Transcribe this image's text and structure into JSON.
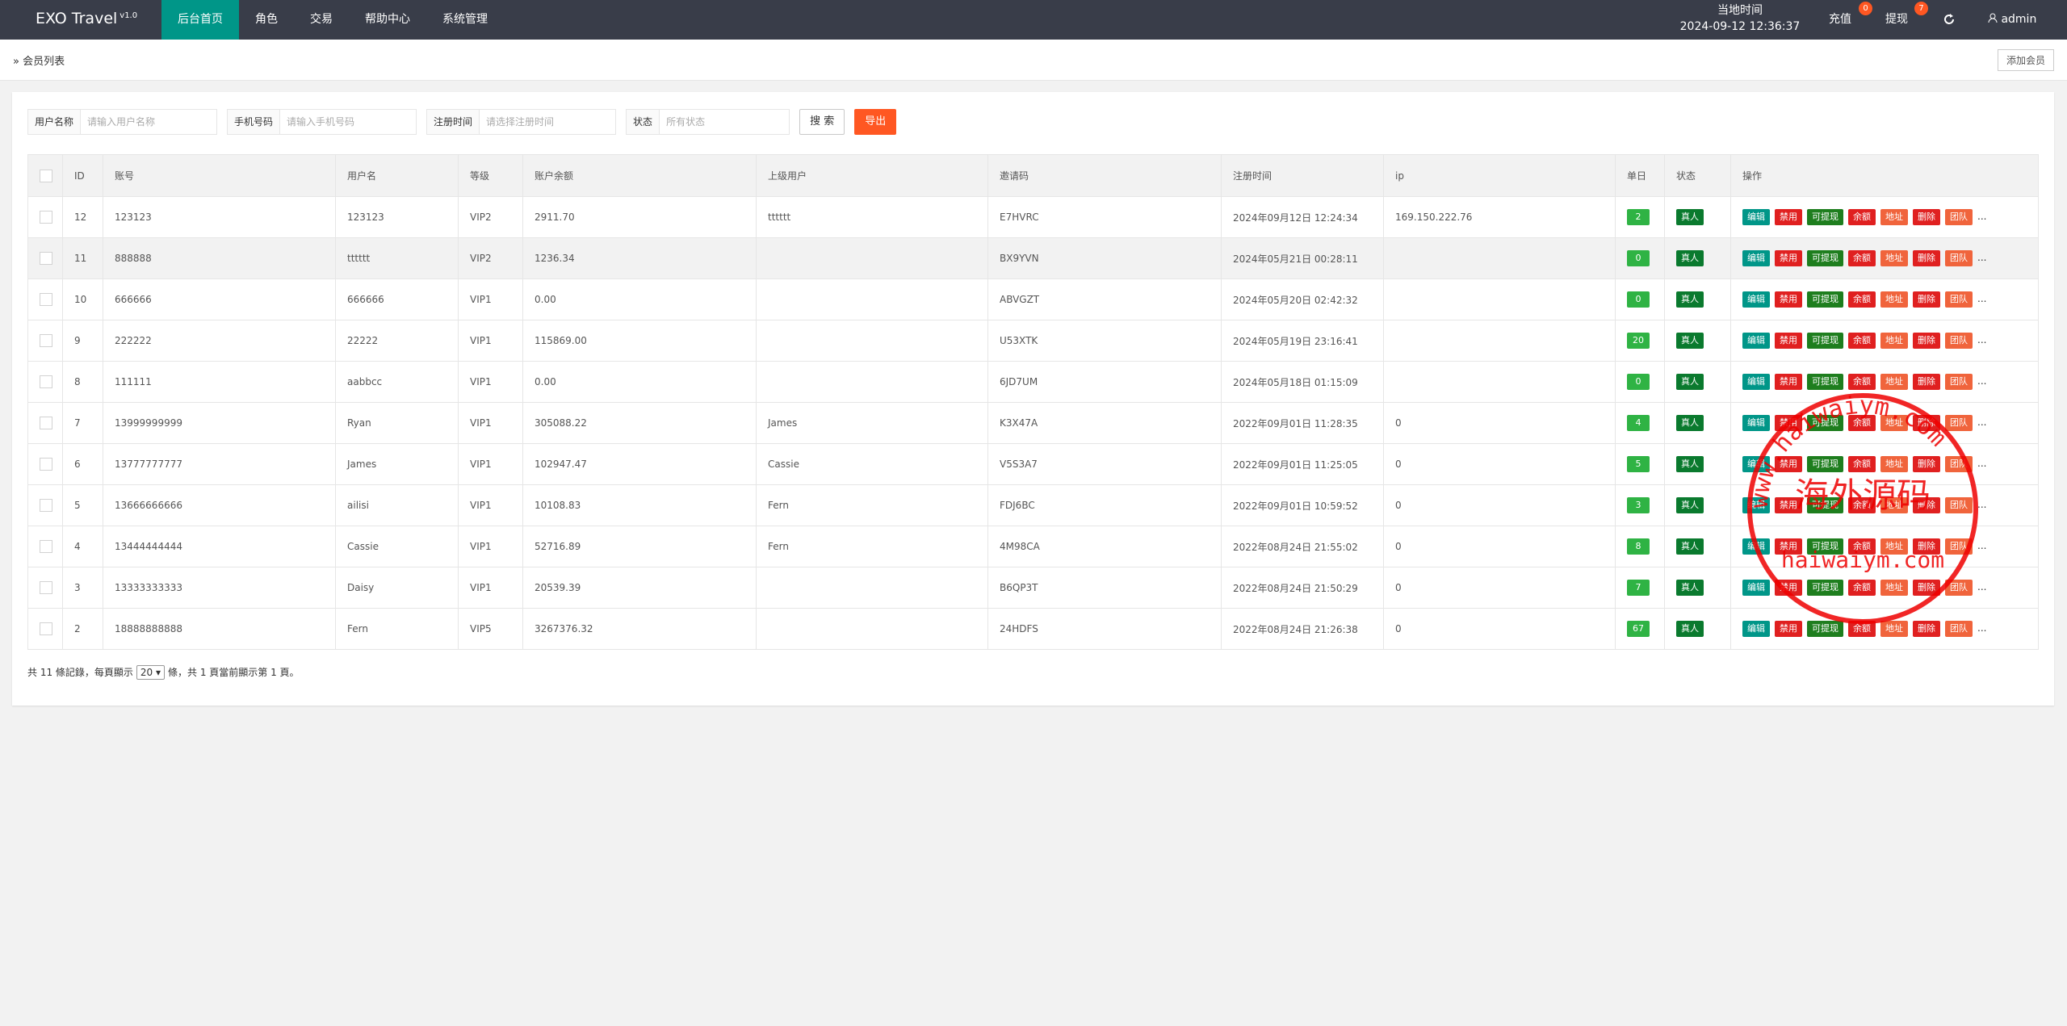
{
  "header": {
    "brand": "EXO Travel",
    "version": "v1.0",
    "nav": [
      "后台首页",
      "角色",
      "交易",
      "帮助中心",
      "系统管理"
    ],
    "time_label": "当地时间",
    "time": "2024-09-12 12:36:37",
    "recharge": "充值",
    "recharge_badge": "0",
    "withdraw": "提现",
    "withdraw_badge": "7",
    "user": "admin"
  },
  "breadcrumb": {
    "title": "会员列表",
    "add_button": "添加会员"
  },
  "filters": {
    "fields": [
      {
        "label": "用户名称",
        "placeholder": "请输入用户名称"
      },
      {
        "label": "手机号码",
        "placeholder": "请输入手机号码"
      },
      {
        "label": "注册时间",
        "placeholder": "请选择注册时间"
      },
      {
        "label": "状态",
        "placeholder": "所有状态"
      }
    ],
    "search": "搜 索",
    "export": "导出"
  },
  "table": {
    "columns": [
      "ID",
      "账号",
      "用户名",
      "等级",
      "账户余额",
      "上级用户",
      "邀请码",
      "注册时间",
      "ip",
      "单日",
      "状态",
      "操作"
    ],
    "rows": [
      [
        "12",
        "123123",
        "123123",
        "VIP2",
        "2911.70",
        "tttttt",
        "E7HVRC",
        "2024年09月12日 12:24:34",
        "169.150.222.76",
        "2",
        "真人"
      ],
      [
        "11",
        "888888",
        "tttttt",
        "VIP2",
        "1236.34",
        null,
        "BX9YVN",
        "2024年05月21日 00:28:11",
        null,
        "0",
        "真人"
      ],
      [
        "10",
        "666666",
        "666666",
        "VIP1",
        "0.00",
        null,
        "ABVGZT",
        "2024年05月20日 02:42:32",
        null,
        "0",
        "真人"
      ],
      [
        "9",
        "222222",
        "22222",
        "VIP1",
        "115869.00",
        null,
        "U53XTK",
        "2024年05月19日 23:16:41",
        null,
        "20",
        "真人"
      ],
      [
        "8",
        "111111",
        "aabbcc",
        "VIP1",
        "0.00",
        null,
        "6JD7UM",
        "2024年05月18日 01:15:09",
        null,
        "0",
        "真人"
      ],
      [
        "7",
        "13999999999",
        "Ryan",
        "VIP1",
        "305088.22",
        "James",
        "K3X47A",
        "2022年09月01日 11:28:35",
        "0",
        "4",
        "真人"
      ],
      [
        "6",
        "13777777777",
        "James",
        "VIP1",
        "102947.47",
        "Cassie",
        "V5S3A7",
        "2022年09月01日 11:25:05",
        "0",
        "5",
        "真人"
      ],
      [
        "5",
        "13666666666",
        "ailisi",
        "VIP1",
        "10108.83",
        "Fern",
        "FDJ6BC",
        "2022年09月01日 10:59:52",
        "0",
        "3",
        "真人"
      ],
      [
        "4",
        "13444444444",
        "Cassie",
        "VIP1",
        "52716.89",
        "Fern",
        "4M98CA",
        "2022年08月24日 21:55:02",
        "0",
        "8",
        "真人"
      ],
      [
        "3",
        "13333333333",
        "Daisy",
        "VIP1",
        "20539.39",
        null,
        "B6QP3T",
        "2022年08月24日 21:50:29",
        "0",
        "7",
        "真人"
      ],
      [
        "2",
        "18888888888",
        "Fern",
        "VIP5",
        "3267376.32",
        null,
        "24HDFS",
        "2022年08月24日 21:26:38",
        "0",
        "67",
        "真人"
      ]
    ],
    "actions": [
      "编辑",
      "禁用",
      "可提现",
      "余额",
      "地址",
      "删除",
      "团队",
      "..."
    ]
  },
  "pagination": {
    "prefix": "共 11 條記錄，每頁顯示",
    "page_size": "20",
    "suffix": "條，共 1 頁當前顯示第 1 頁。"
  },
  "stamp": {
    "title": "海外源码",
    "url": "haiwaiym.com",
    "ring": "www.haiwaiym.com"
  }
}
